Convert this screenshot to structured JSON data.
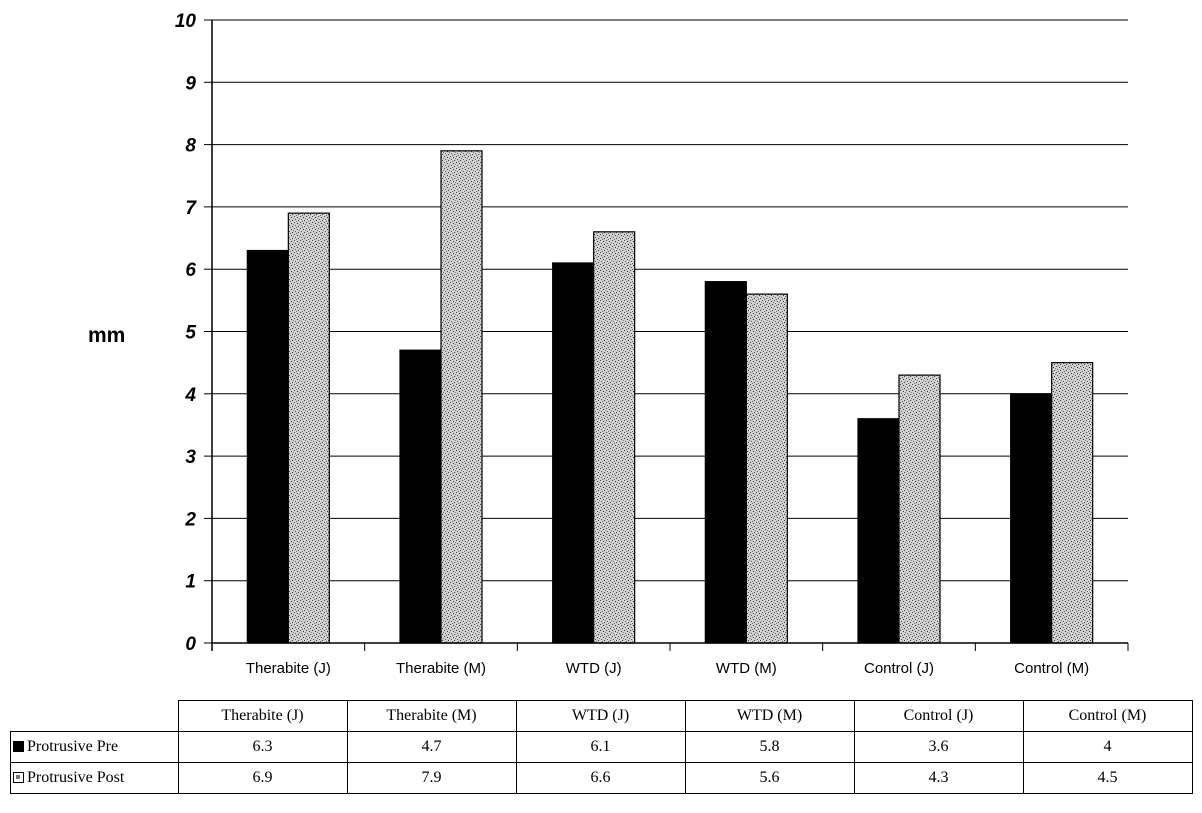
{
  "chart_data": {
    "type": "bar",
    "categories": [
      "Therabite (J)",
      "Therabite (M)",
      "WTD (J)",
      "WTD (M)",
      "Control (J)",
      "Control (M)"
    ],
    "series": [
      {
        "name": "Protrusive Pre",
        "values": [
          6.3,
          4.7,
          6.1,
          5.8,
          3.6,
          4
        ],
        "color": "#000000"
      },
      {
        "name": "Protrusive Post",
        "values": [
          6.9,
          7.9,
          6.6,
          5.6,
          4.3,
          4.5
        ],
        "color": "#9a9a9a"
      }
    ],
    "ylabel": "mm",
    "xlabel": "",
    "ylim": [
      0,
      10
    ],
    "yticks": [
      "0",
      "1",
      "2",
      "3",
      "4",
      "5",
      "6",
      "7",
      "8",
      "9",
      "10"
    ],
    "grid": true,
    "legend": "data-table-below"
  },
  "table": {
    "rows": [
      {
        "label": "Protrusive Pre",
        "key": "pre",
        "values": [
          "6.3",
          "4.7",
          "6.1",
          "5.8",
          "3.6",
          "4"
        ]
      },
      {
        "label": "Protrusive Post",
        "key": "post",
        "values": [
          "6.9",
          "7.9",
          "6.6",
          "5.6",
          "4.3",
          "4.5"
        ]
      }
    ]
  }
}
